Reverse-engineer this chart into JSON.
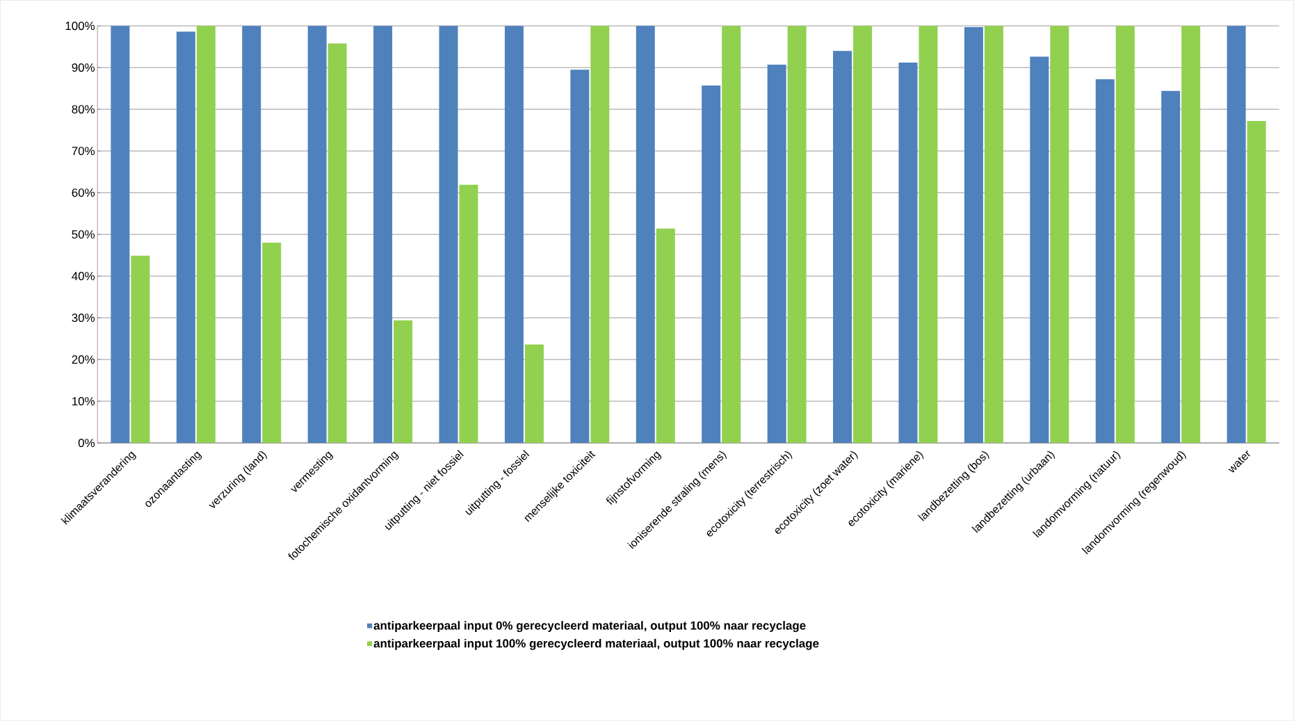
{
  "chart_data": {
    "type": "bar",
    "categories": [
      "klimaatsverandering",
      "ozonaantasting",
      "verzuring (land)",
      "vermesting",
      "fotochemische oxidantvorming",
      "uitputting - niet fossiel",
      "uitputting - fossiel",
      "menselijke toxiciteit",
      "fijnstofvorming",
      "ioniserende straling (mens)",
      "ecotoxicity (terrestrisch)",
      "ecotoxicity (zoet water)",
      "ecotoxicity (mariene)",
      "landbezetting (bos)",
      "landbezetting (urbaan)",
      "landomvorming (natuur)",
      "landomvorming (regenwoud)",
      "water"
    ],
    "series": [
      {
        "name": "antiparkeerpaal input 0% gerecycleerd materiaal, output 100% naar recyclage",
        "color": "#4f81bd",
        "values": [
          100,
          98.6,
          100,
          100,
          100,
          100,
          100,
          89.5,
          100,
          85.7,
          90.7,
          94.0,
          91.2,
          99.7,
          92.6,
          87.2,
          84.4,
          100
        ]
      },
      {
        "name": "antiparkeerpaal input 100% gerecycleerd materiaal, output 100% naar recyclage",
        "color": "#92d050",
        "values": [
          44.9,
          100,
          48.0,
          95.8,
          29.4,
          61.9,
          23.6,
          100,
          51.4,
          100,
          100,
          100,
          100,
          100,
          100,
          100,
          100,
          77.2
        ]
      }
    ],
    "ylim": [
      0,
      100
    ],
    "yticks": [
      {
        "value": 0,
        "label": "0%"
      },
      {
        "value": 10,
        "label": "10%"
      },
      {
        "value": 20,
        "label": "20%"
      },
      {
        "value": 30,
        "label": "30%"
      },
      {
        "value": 40,
        "label": "40%"
      },
      {
        "value": 50,
        "label": "50%"
      },
      {
        "value": 60,
        "label": "60%"
      },
      {
        "value": 70,
        "label": "70%"
      },
      {
        "value": 80,
        "label": "80%"
      },
      {
        "value": 90,
        "label": "90%"
      },
      {
        "value": 100,
        "label": "100%"
      }
    ],
    "grid": "y",
    "legend": "bottom"
  }
}
